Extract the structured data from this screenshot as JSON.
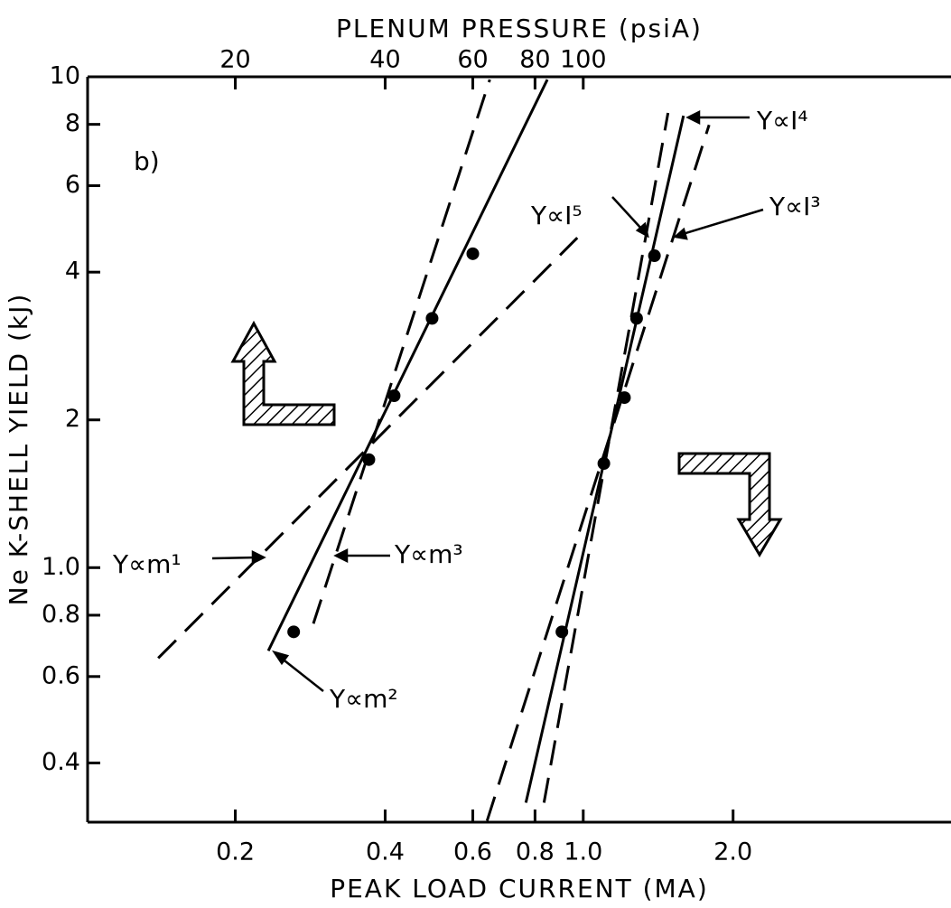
{
  "chart_data": {
    "type": "scatter",
    "log": true,
    "xlabel": "PEAK LOAD CURRENT (MA)",
    "x2label": "PLENUM PRESSURE (psiA)",
    "ylabel": "Ne K-SHELL YIELD (kJ)",
    "xlim": [
      0.101,
      5.48
    ],
    "x2lim": [
      10.1,
      548
    ],
    "ylim": [
      0.303,
      10
    ],
    "xticks": [
      0.2,
      0.4,
      0.6,
      0.8,
      {
        "value": 1,
        "label": "1.0"
      },
      {
        "value": 2,
        "label": "2.0"
      }
    ],
    "x2ticks": [
      20,
      40,
      60,
      80,
      100
    ],
    "yticks": [
      0.4,
      0.6,
      0.8,
      {
        "value": 1,
        "label": "1.0"
      },
      2,
      4,
      6,
      8,
      10
    ],
    "annotations": [
      "b)",
      "Y∝m¹",
      "Y∝m³",
      "Y∝m²",
      "Y∝I⁴",
      "Y∝I⁵",
      "Y∝I³"
    ],
    "series": [
      {
        "style": "points",
        "axis": "x2",
        "color": "#000",
        "x": [
          26.2,
          37.1,
          41.7,
          49.7,
          60
        ],
        "values": [
          0.74,
          1.66,
          2.24,
          3.22,
          4.36
        ]
      },
      {
        "style": "points",
        "axis": "x",
        "color": "#000",
        "x": [
          0.906,
          1.1,
          1.21,
          1.28,
          1.39
        ],
        "values": [
          0.74,
          1.63,
          2.22,
          3.22,
          4.32
        ]
      },
      {
        "style": "solid",
        "axis": "x2",
        "color": "#000",
        "x": [
          23.3,
          84.7
        ],
        "values": [
          0.677,
          9.87
        ]
      },
      {
        "style": "dashed",
        "axis": "x2",
        "color": "#000",
        "x": [
          28.7,
          64.9
        ],
        "values": [
          0.769,
          9.87
        ]
      },
      {
        "style": "dashed",
        "axis": "x2",
        "color": "#000",
        "x": [
          14.0,
          97.3
        ],
        "values": [
          0.654,
          4.7
        ]
      },
      {
        "style": "solid",
        "axis": "x",
        "color": "#000",
        "x": [
          0.767,
          1.59
        ],
        "values": [
          0.332,
          8.33
        ]
      },
      {
        "style": "dashed",
        "axis": "x",
        "color": "#000",
        "x": [
          0.834,
          1.48
        ],
        "values": [
          0.332,
          8.44
        ]
      },
      {
        "style": "dashed",
        "axis": "x",
        "color": "#000",
        "x": [
          0.641,
          1.79
        ],
        "values": [
          0.305,
          7.98
        ]
      }
    ]
  }
}
